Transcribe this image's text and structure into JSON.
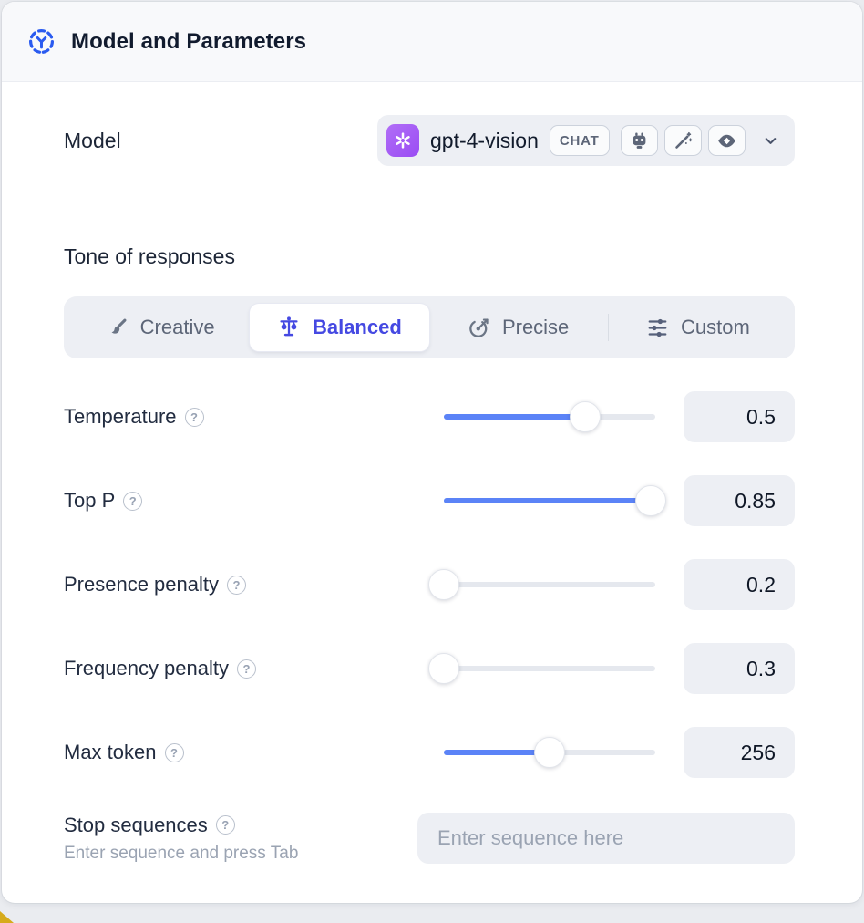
{
  "header": {
    "title": "Model and Parameters"
  },
  "model": {
    "label": "Model",
    "selected": "gpt-4-vision",
    "type_badge": "CHAT",
    "capabilities": [
      "robot",
      "magic-wand",
      "vision-eye"
    ]
  },
  "tone": {
    "section_label": "Tone of responses",
    "options": [
      {
        "label": "Creative",
        "icon": "paintbrush-icon",
        "selected": false
      },
      {
        "label": "Balanced",
        "icon": "balance-scale-icon",
        "selected": true
      },
      {
        "label": "Precise",
        "icon": "target-icon",
        "selected": false
      },
      {
        "label": "Custom",
        "icon": "sliders-icon",
        "selected": false
      }
    ]
  },
  "parameters": [
    {
      "label": "Temperature",
      "value": "0.5",
      "slider_pct": 67
    },
    {
      "label": "Top P",
      "value": "0.85",
      "slider_pct": 98
    },
    {
      "label": "Presence penalty",
      "value": "0.2",
      "slider_pct": 0
    },
    {
      "label": "Frequency penalty",
      "value": "0.3",
      "slider_pct": 0
    },
    {
      "label": "Max token",
      "value": "256",
      "slider_pct": 50
    }
  ],
  "stop_sequences": {
    "label": "Stop sequences",
    "helper_text": "Enter sequence and press Tab",
    "input_placeholder": "Enter sequence here"
  },
  "icons": {
    "help_glyph": "?"
  },
  "colors": {
    "accent_blue": "#2a5bf0",
    "selected_indigo": "#4549e2",
    "slider_fill": "#5b83f7",
    "model_logo_purple": "#a55cf4",
    "control_bg": "#edeff4",
    "header_bg": "#f8f9fb",
    "corner_accent": "#d6ab1c"
  }
}
